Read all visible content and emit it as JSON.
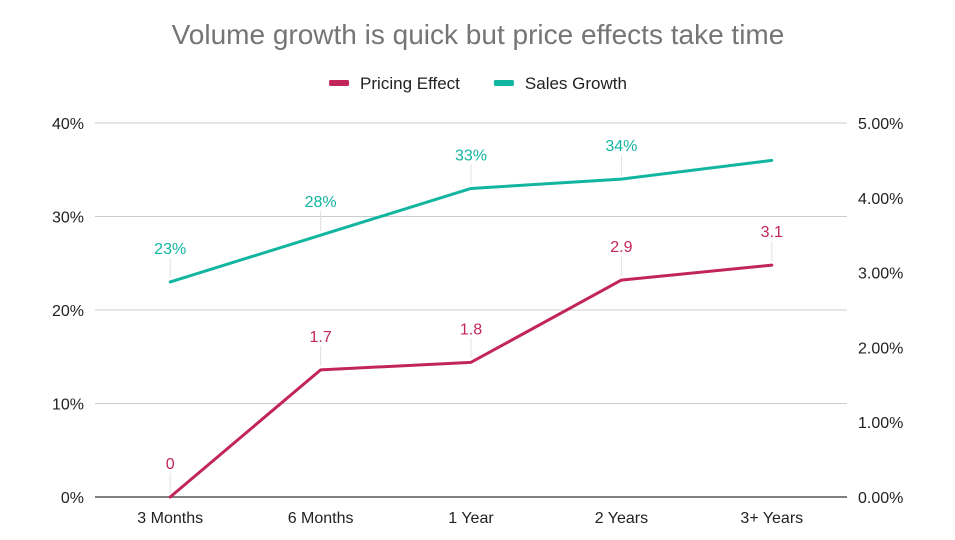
{
  "chart_data": {
    "type": "line",
    "title": "Volume growth is quick but price effects take time",
    "xlabel": "",
    "ylabel": "",
    "categories": [
      "3 Months",
      "6 Months",
      "1 Year",
      "2 Years",
      "3+ Years"
    ],
    "legend_position": "top",
    "grid": true,
    "y_left": {
      "min": 0,
      "max": 40,
      "ticks": [
        0,
        10,
        20,
        30,
        40
      ],
      "tick_labels": [
        "0%",
        "10%",
        "20%",
        "30%",
        "40%"
      ]
    },
    "y_right": {
      "min": 0,
      "max": 5,
      "ticks": [
        0,
        1,
        2,
        3,
        4,
        5
      ],
      "tick_labels": [
        "0.00%",
        "1.00%",
        "2.00%",
        "3.00%",
        "4.00%",
        "5.00%"
      ]
    },
    "series": [
      {
        "name": "Pricing Effect",
        "axis": "right",
        "color": "#c2255c",
        "values": [
          0,
          1.7,
          1.8,
          2.9,
          3.1
        ],
        "labels": [
          "0",
          "1.7",
          "1.8",
          "2.9",
          "3.1"
        ]
      },
      {
        "name": "Sales Growth",
        "axis": "left",
        "color": "#12b5a0",
        "values": [
          23,
          28,
          33,
          34,
          36
        ],
        "labels": [
          "23%",
          "28%",
          "33%",
          "34%",
          ""
        ]
      }
    ]
  }
}
